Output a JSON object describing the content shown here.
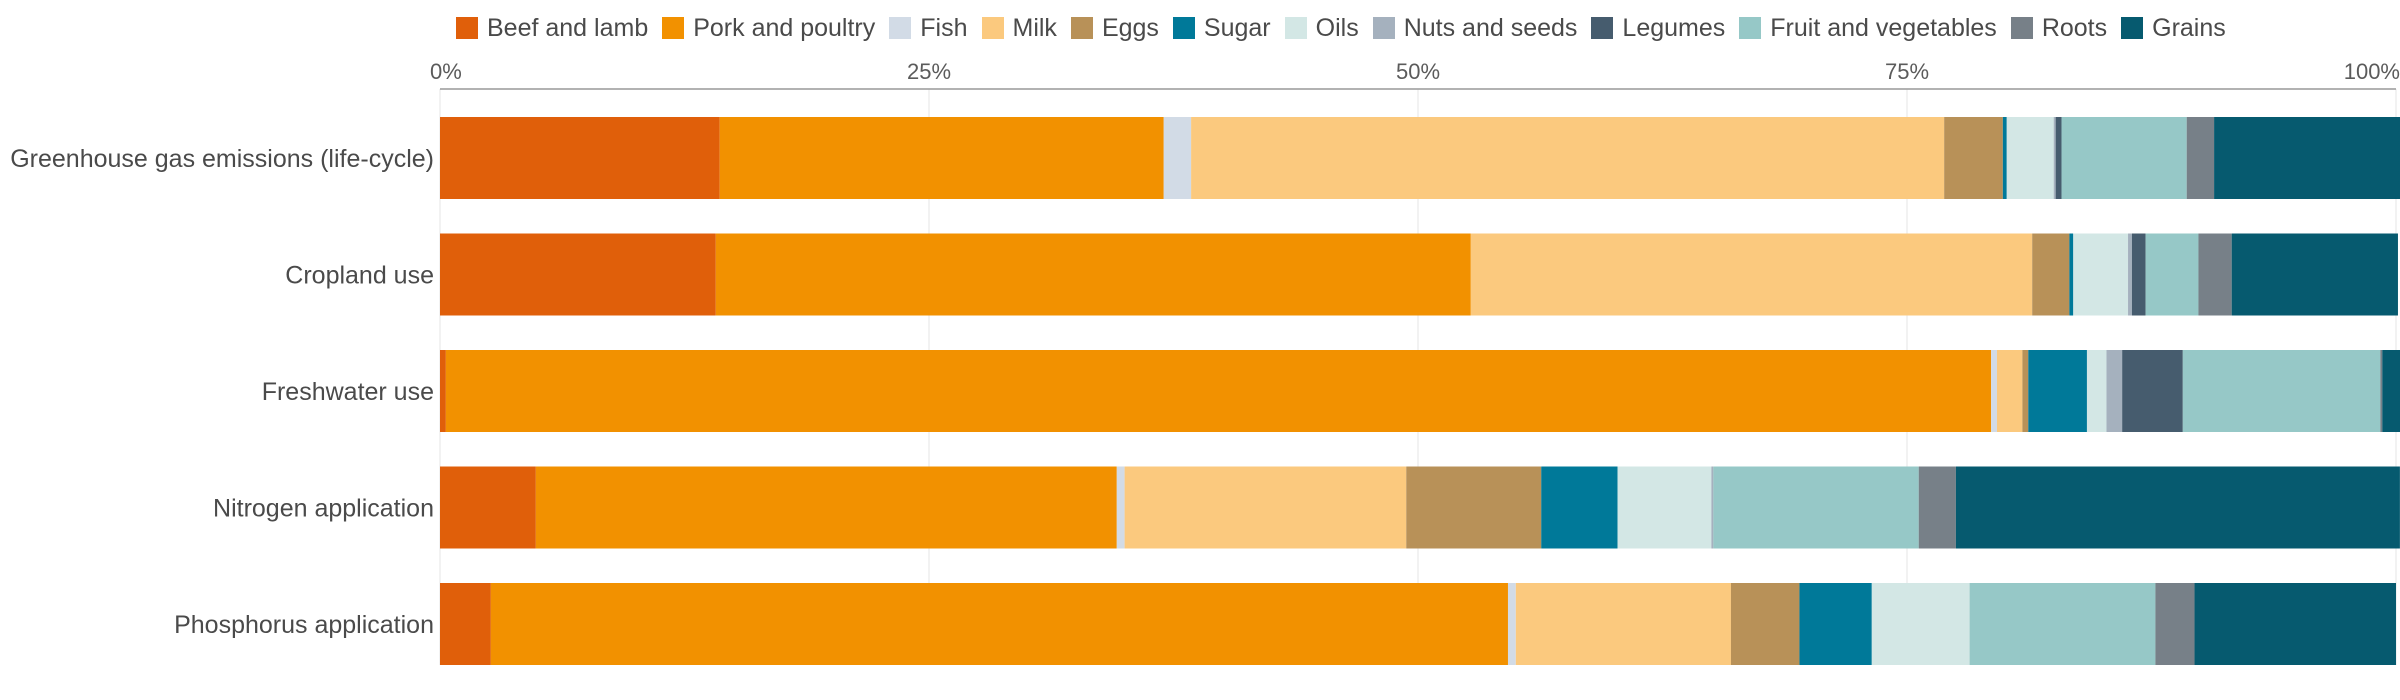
{
  "chart_data": {
    "type": "bar",
    "orientation": "horizontal",
    "stacked": true,
    "normalized": true,
    "title": "",
    "xlabel": "",
    "ylabel": "",
    "xlim": [
      0,
      100
    ],
    "x_ticks": [
      "0%",
      "25%",
      "50%",
      "75%",
      "100%"
    ],
    "grid": true,
    "legend_position": "top",
    "categories": [
      "Greenhouse gas emissions (life-cycle)",
      "Cropland use",
      "Freshwater use",
      "Nitrogen application",
      "Phosphorus application"
    ],
    "series": [
      {
        "name": "Beef and lamb",
        "color": "#e05f0a",
        "values": [
          14.3,
          14.1,
          0.3,
          4.9,
          2.6
        ]
      },
      {
        "name": "Pork and poultry",
        "color": "#f29100",
        "values": [
          22.7,
          38.6,
          79.0,
          29.7,
          52.0
        ]
      },
      {
        "name": "Fish",
        "color": "#d2dbe6",
        "values": [
          1.4,
          0.0,
          0.3,
          0.4,
          0.4
        ]
      },
      {
        "name": "Milk",
        "color": "#fbc97e",
        "values": [
          38.5,
          28.7,
          1.3,
          14.4,
          11.0
        ]
      },
      {
        "name": "Eggs",
        "color": "#b89158",
        "values": [
          3.0,
          1.9,
          0.3,
          6.9,
          3.5
        ]
      },
      {
        "name": "Sugar",
        "color": "#007999",
        "values": [
          0.2,
          0.2,
          3.0,
          3.9,
          3.7
        ]
      },
      {
        "name": "Oils",
        "color": "#d3e7e5",
        "values": [
          2.4,
          2.8,
          1.0,
          4.8,
          5.0
        ]
      },
      {
        "name": "Nuts and seeds",
        "color": "#a5b1be",
        "values": [
          0.1,
          0.2,
          0.8,
          0.1,
          0.0
        ]
      },
      {
        "name": "Legumes",
        "color": "#465c6e",
        "values": [
          0.3,
          0.7,
          3.1,
          0.0,
          0.0
        ]
      },
      {
        "name": "Fruit and vegetables",
        "color": "#96c8c7",
        "values": [
          6.4,
          2.7,
          10.1,
          10.5,
          9.5
        ]
      },
      {
        "name": "Roots",
        "color": "#778088",
        "values": [
          1.4,
          1.7,
          0.1,
          1.9,
          2.0
        ]
      },
      {
        "name": "Grains",
        "color": "#065a6f",
        "values": [
          9.8,
          8.5,
          1.2,
          22.7,
          10.3
        ]
      }
    ]
  }
}
